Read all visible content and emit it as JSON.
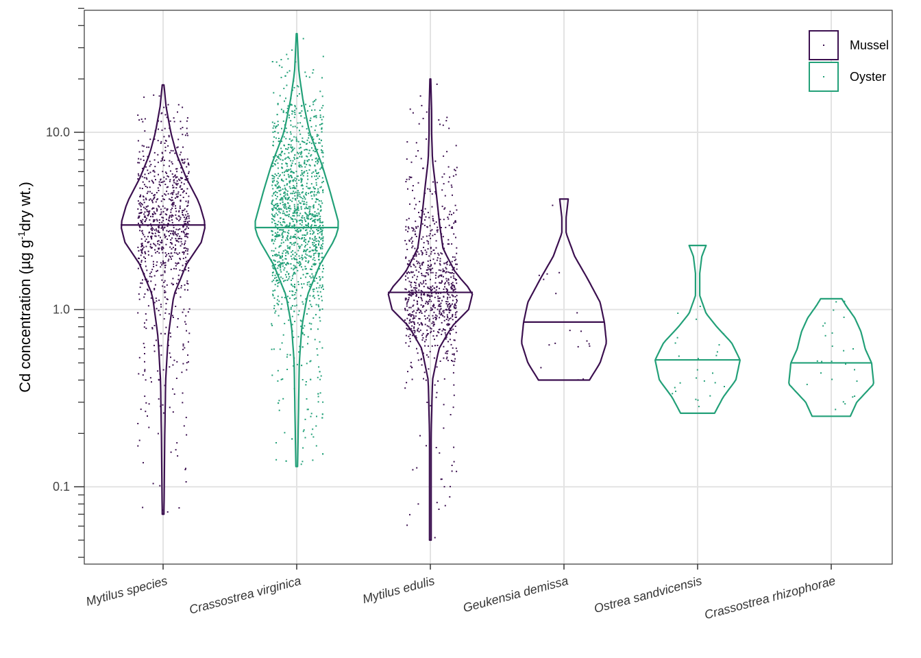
{
  "chart_data": {
    "type": "violin",
    "ylabel": {
      "main": "Cd concentration (",
      "mu": "µg g",
      "sup": "-1",
      "rest": "dry wt.)"
    },
    "y_scale": "log10",
    "ylim": [
      0.04,
      50
    ],
    "y_ticks": [
      0.1,
      1.0,
      10.0
    ],
    "y_tick_labels": [
      "0.1",
      "1.0",
      "10.0"
    ],
    "grid": true,
    "legend_position": "top-right",
    "legend": [
      {
        "name": "Mussel",
        "color": "#3b0f4f"
      },
      {
        "name": "Oyster",
        "color": "#22a078"
      }
    ],
    "groups": [
      {
        "category": "Mytilus species",
        "group": "Mussel",
        "median": 3.0,
        "min": 0.07,
        "max": 18.5,
        "density": [
          [
            0.07,
            0.02
          ],
          [
            0.2,
            0.04
          ],
          [
            0.4,
            0.06
          ],
          [
            0.7,
            0.12
          ],
          [
            1.2,
            0.25
          ],
          [
            1.8,
            0.55
          ],
          [
            2.4,
            0.9
          ],
          [
            3.0,
            1.0
          ],
          [
            4.0,
            0.85
          ],
          [
            5.5,
            0.55
          ],
          [
            7.5,
            0.32
          ],
          [
            10,
            0.18
          ],
          [
            14,
            0.07
          ],
          [
            18.5,
            0.02
          ]
        ],
        "n_points": 900
      },
      {
        "category": "Crassostrea virginica",
        "group": "Oyster",
        "median": 2.9,
        "min": 0.13,
        "max": 36,
        "density": [
          [
            0.13,
            0.02
          ],
          [
            0.25,
            0.04
          ],
          [
            0.5,
            0.06
          ],
          [
            0.8,
            0.12
          ],
          [
            1.2,
            0.25
          ],
          [
            1.8,
            0.55
          ],
          [
            2.5,
            0.9
          ],
          [
            3.0,
            1.0
          ],
          [
            4.5,
            0.8
          ],
          [
            6.5,
            0.6
          ],
          [
            10,
            0.3
          ],
          [
            15,
            0.15
          ],
          [
            22,
            0.05
          ],
          [
            36,
            0.01
          ]
        ],
        "n_points": 1600
      },
      {
        "category": "Mytilus edulis",
        "group": "Mussel",
        "median": 1.25,
        "min": 0.05,
        "max": 20,
        "density": [
          [
            0.05,
            0.02
          ],
          [
            0.2,
            0.02
          ],
          [
            0.4,
            0.05
          ],
          [
            0.6,
            0.2
          ],
          [
            0.8,
            0.5
          ],
          [
            1.0,
            0.9
          ],
          [
            1.25,
            1.0
          ],
          [
            1.6,
            0.6
          ],
          [
            2.2,
            0.3
          ],
          [
            3,
            0.22
          ],
          [
            5,
            0.12
          ],
          [
            7,
            0.05
          ],
          [
            10,
            0.03
          ],
          [
            13,
            0.03
          ],
          [
            20,
            0.01
          ]
        ],
        "n_points": 850
      },
      {
        "category": "Geukensia demissa",
        "group": "Mussel",
        "median": 0.85,
        "min": 0.4,
        "max": 4.2,
        "density": [
          [
            0.4,
            0.6
          ],
          [
            0.5,
            0.85
          ],
          [
            0.65,
            1.0
          ],
          [
            0.85,
            0.95
          ],
          [
            1.1,
            0.85
          ],
          [
            1.5,
            0.55
          ],
          [
            2.0,
            0.25
          ],
          [
            2.7,
            0.05
          ],
          [
            3.3,
            0.05
          ],
          [
            4.2,
            0.1
          ]
        ],
        "n_points": 18
      },
      {
        "category": "Ostrea sandvicensis",
        "group": "Oyster",
        "median": 0.52,
        "min": 0.26,
        "max": 2.3,
        "density": [
          [
            0.26,
            0.4
          ],
          [
            0.32,
            0.6
          ],
          [
            0.4,
            0.9
          ],
          [
            0.52,
            1.0
          ],
          [
            0.65,
            0.8
          ],
          [
            0.8,
            0.45
          ],
          [
            0.95,
            0.2
          ],
          [
            1.2,
            0.05
          ],
          [
            1.6,
            0.05
          ],
          [
            2.0,
            0.1
          ],
          [
            2.3,
            0.2
          ]
        ],
        "n_points": 25
      },
      {
        "category": "Crassostrea rhizophorae",
        "group": "Oyster",
        "median": 0.5,
        "min": 0.25,
        "max": 1.15,
        "density": [
          [
            0.25,
            0.45
          ],
          [
            0.3,
            0.6
          ],
          [
            0.38,
            1.0
          ],
          [
            0.5,
            0.95
          ],
          [
            0.6,
            0.8
          ],
          [
            0.75,
            0.7
          ],
          [
            0.9,
            0.55
          ],
          [
            1.05,
            0.35
          ],
          [
            1.15,
            0.25
          ]
        ],
        "n_points": 25
      }
    ]
  }
}
